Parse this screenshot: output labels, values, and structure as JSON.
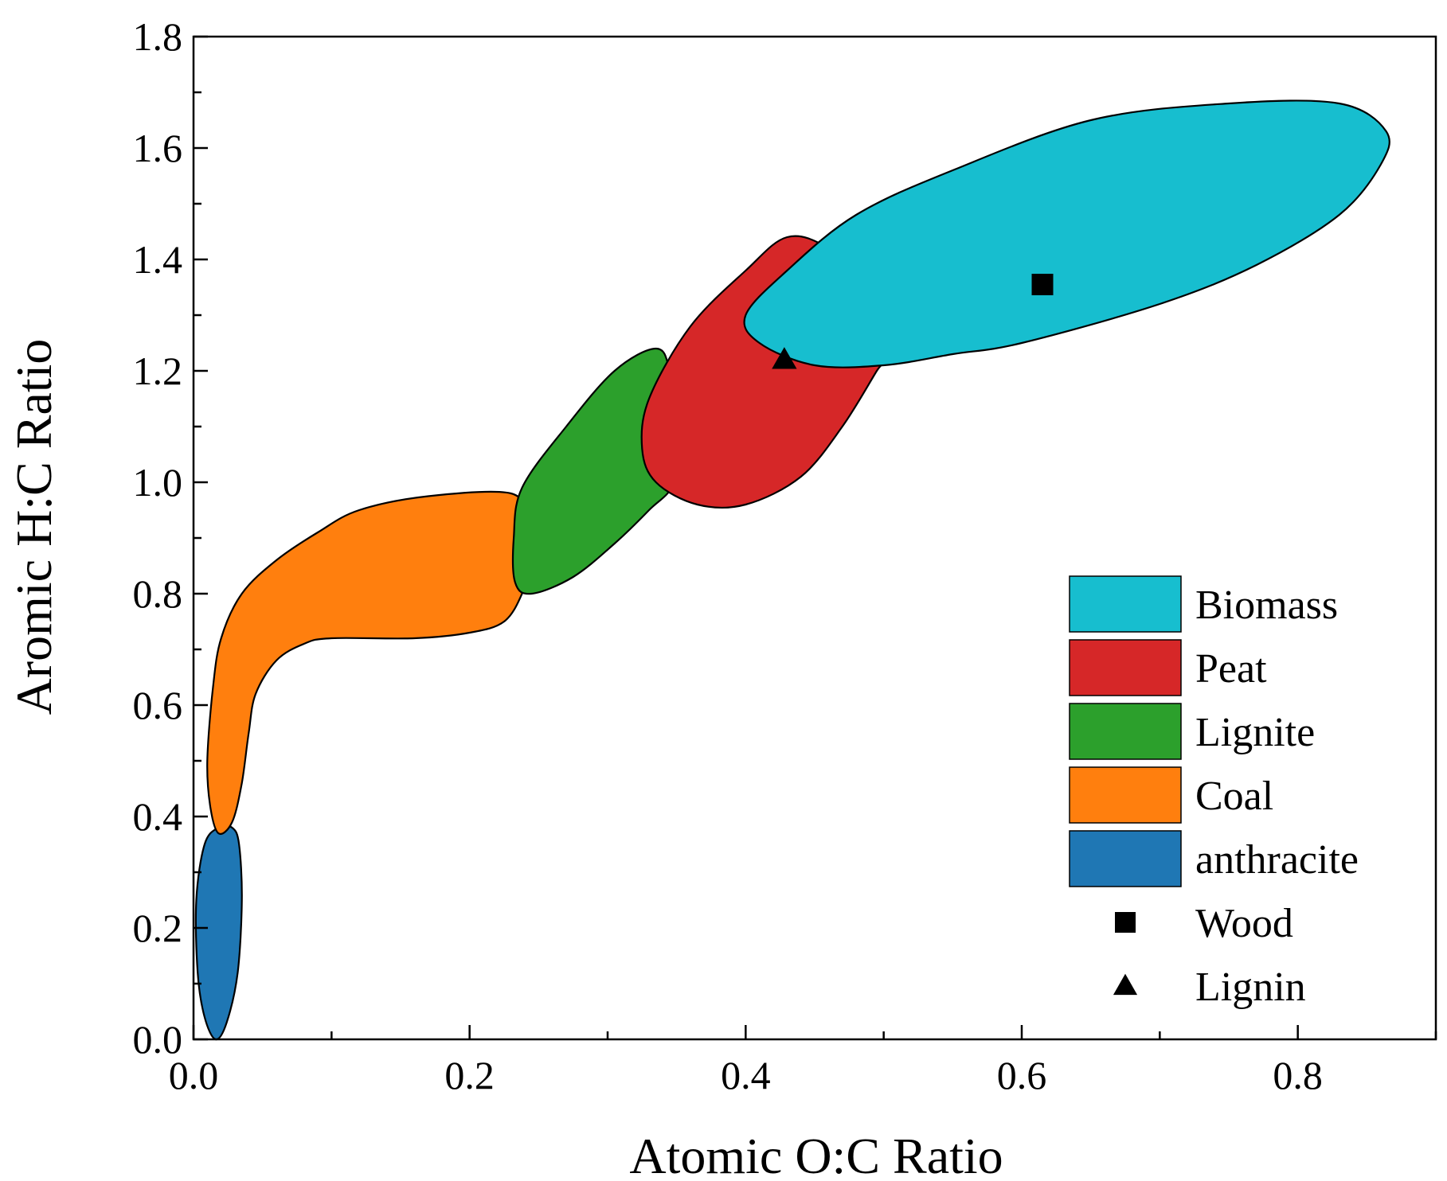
{
  "chart_data": {
    "type": "scatter",
    "title": "",
    "xlabel": "Atomic O:C Ratio",
    "ylabel": "Aromic H:C Ratio",
    "xlim": [
      0.0,
      0.9
    ],
    "ylim": [
      0.0,
      1.8
    ],
    "x_ticks": [
      0.0,
      0.2,
      0.4,
      0.6,
      0.8
    ],
    "x_tick_labels": [
      "0.0",
      "0.2",
      "0.4",
      "0.6",
      "0.8"
    ],
    "y_ticks": [
      0.0,
      0.2,
      0.4,
      0.6,
      0.8,
      1.0,
      1.2,
      1.4,
      1.6,
      1.8
    ],
    "y_tick_labels": [
      "0.0",
      "0.2",
      "0.4",
      "0.6",
      "0.8",
      "1.0",
      "1.2",
      "1.4",
      "1.6",
      "1.8"
    ],
    "legend_position": "bottom-right",
    "regions": [
      {
        "name": "anthracite",
        "color": "#1f77b4",
        "outline": [
          [
            0.016,
            0.0
          ],
          [
            0.024,
            0.03
          ],
          [
            0.032,
            0.12
          ],
          [
            0.035,
            0.25
          ],
          [
            0.033,
            0.35
          ],
          [
            0.028,
            0.38
          ],
          [
            0.018,
            0.38
          ],
          [
            0.008,
            0.35
          ],
          [
            0.002,
            0.25
          ],
          [
            0.003,
            0.12
          ],
          [
            0.008,
            0.04
          ]
        ]
      },
      {
        "name": "Coal",
        "color": "#ff7f0e",
        "outline": [
          [
            0.018,
            0.37
          ],
          [
            0.012,
            0.42
          ],
          [
            0.01,
            0.5
          ],
          [
            0.014,
            0.63
          ],
          [
            0.02,
            0.72
          ],
          [
            0.035,
            0.8
          ],
          [
            0.06,
            0.86
          ],
          [
            0.09,
            0.91
          ],
          [
            0.12,
            0.95
          ],
          [
            0.17,
            0.975
          ],
          [
            0.23,
            0.98
          ],
          [
            0.24,
            0.93
          ],
          [
            0.243,
            0.85
          ],
          [
            0.238,
            0.8
          ],
          [
            0.225,
            0.75
          ],
          [
            0.2,
            0.73
          ],
          [
            0.16,
            0.72
          ],
          [
            0.1,
            0.72
          ],
          [
            0.08,
            0.71
          ],
          [
            0.06,
            0.68
          ],
          [
            0.045,
            0.62
          ],
          [
            0.04,
            0.55
          ],
          [
            0.035,
            0.46
          ],
          [
            0.028,
            0.39
          ]
        ]
      },
      {
        "name": "Lignite",
        "color": "#2ca02c",
        "outline": [
          [
            0.232,
            0.9
          ],
          [
            0.238,
            0.99
          ],
          [
            0.27,
            1.1
          ],
          [
            0.305,
            1.2
          ],
          [
            0.335,
            1.24
          ],
          [
            0.345,
            1.2
          ],
          [
            0.35,
            1.1
          ],
          [
            0.348,
            1.0
          ],
          [
            0.33,
            0.95
          ],
          [
            0.305,
            0.89
          ],
          [
            0.275,
            0.83
          ],
          [
            0.245,
            0.8
          ],
          [
            0.233,
            0.82
          ]
        ]
      },
      {
        "name": "Peat",
        "color": "#d62728",
        "outline": [
          [
            0.325,
            1.06
          ],
          [
            0.33,
            1.15
          ],
          [
            0.36,
            1.28
          ],
          [
            0.4,
            1.38
          ],
          [
            0.43,
            1.44
          ],
          [
            0.46,
            1.42
          ],
          [
            0.49,
            1.35
          ],
          [
            0.505,
            1.24
          ],
          [
            0.495,
            1.2
          ],
          [
            0.47,
            1.1
          ],
          [
            0.44,
            1.01
          ],
          [
            0.4,
            0.96
          ],
          [
            0.365,
            0.96
          ],
          [
            0.335,
            1.0
          ]
        ]
      },
      {
        "name": "Biomass",
        "color": "#17becf",
        "outline": [
          [
            0.4,
            1.3
          ],
          [
            0.43,
            1.38
          ],
          [
            0.48,
            1.48
          ],
          [
            0.55,
            1.56
          ],
          [
            0.65,
            1.65
          ],
          [
            0.75,
            1.68
          ],
          [
            0.83,
            1.68
          ],
          [
            0.864,
            1.63
          ],
          [
            0.86,
            1.57
          ],
          [
            0.83,
            1.48
          ],
          [
            0.77,
            1.39
          ],
          [
            0.7,
            1.32
          ],
          [
            0.6,
            1.25
          ],
          [
            0.55,
            1.23
          ],
          [
            0.5,
            1.21
          ],
          [
            0.45,
            1.21
          ],
          [
            0.41,
            1.25
          ]
        ]
      }
    ],
    "points": [
      {
        "name": "Wood",
        "marker": "square",
        "x": 0.615,
        "y": 1.355
      },
      {
        "name": "Lignin",
        "marker": "triangle",
        "x": 0.428,
        "y": 1.22
      }
    ],
    "legend": [
      {
        "label": "Biomass",
        "kind": "patch",
        "color": "#17becf"
      },
      {
        "label": "Peat",
        "kind": "patch",
        "color": "#d62728"
      },
      {
        "label": "Lignite",
        "kind": "patch",
        "color": "#2ca02c"
      },
      {
        "label": "Coal",
        "kind": "patch",
        "color": "#ff7f0e"
      },
      {
        "label": "anthracite",
        "kind": "patch",
        "color": "#1f77b4"
      },
      {
        "label": "Wood",
        "kind": "square",
        "color": "#000000"
      },
      {
        "label": "Lignin",
        "kind": "triangle",
        "color": "#000000"
      }
    ]
  }
}
